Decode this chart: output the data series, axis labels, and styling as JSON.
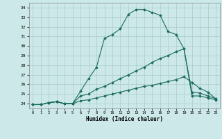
{
  "xlabel": "Humidex (Indice chaleur)",
  "ylabel": "",
  "xlim": [
    -0.5,
    23.5
  ],
  "ylim": [
    23.5,
    34.5
  ],
  "yticks": [
    24,
    25,
    26,
    27,
    28,
    29,
    30,
    31,
    32,
    33,
    34
  ],
  "xticks": [
    0,
    1,
    2,
    3,
    4,
    5,
    6,
    7,
    8,
    9,
    10,
    11,
    12,
    13,
    14,
    15,
    16,
    17,
    18,
    19,
    20,
    21,
    22,
    23
  ],
  "background_color": "#cce8e8",
  "grid_color": "#aacccc",
  "line_color": "#1a6b5e",
  "lines": [
    {
      "x": [
        0,
        1,
        2,
        3,
        4,
        5,
        6,
        7,
        8,
        9,
        10,
        11,
        12,
        13,
        14,
        15,
        16,
        17,
        18,
        19,
        20,
        21,
        22,
        23
      ],
      "y": [
        23.9,
        23.9,
        24.1,
        24.2,
        24.0,
        24.0,
        25.3,
        26.6,
        27.8,
        30.8,
        31.2,
        31.8,
        33.3,
        33.8,
        33.8,
        33.5,
        33.2,
        31.5,
        31.2,
        29.7,
        24.8,
        24.8,
        24.6,
        24.4
      ]
    },
    {
      "x": [
        0,
        1,
        2,
        3,
        4,
        5,
        6,
        7,
        8,
        9,
        10,
        11,
        12,
        13,
        14,
        15,
        16,
        17,
        18,
        19,
        20,
        21,
        22,
        23
      ],
      "y": [
        23.9,
        23.9,
        24.1,
        24.2,
        24.0,
        24.0,
        24.8,
        25.0,
        25.5,
        25.8,
        26.2,
        26.6,
        27.0,
        27.4,
        27.8,
        28.3,
        28.7,
        29.0,
        29.4,
        29.7,
        25.2,
        25.1,
        24.8,
        24.5
      ]
    },
    {
      "x": [
        0,
        1,
        2,
        3,
        4,
        5,
        6,
        7,
        8,
        9,
        10,
        11,
        12,
        13,
        14,
        15,
        16,
        17,
        18,
        19,
        20,
        21,
        22,
        23
      ],
      "y": [
        23.9,
        23.9,
        24.1,
        24.2,
        24.0,
        24.0,
        24.3,
        24.4,
        24.6,
        24.8,
        25.0,
        25.2,
        25.4,
        25.6,
        25.8,
        25.9,
        26.1,
        26.3,
        26.5,
        26.8,
        26.2,
        25.6,
        25.2,
        24.5
      ]
    }
  ]
}
